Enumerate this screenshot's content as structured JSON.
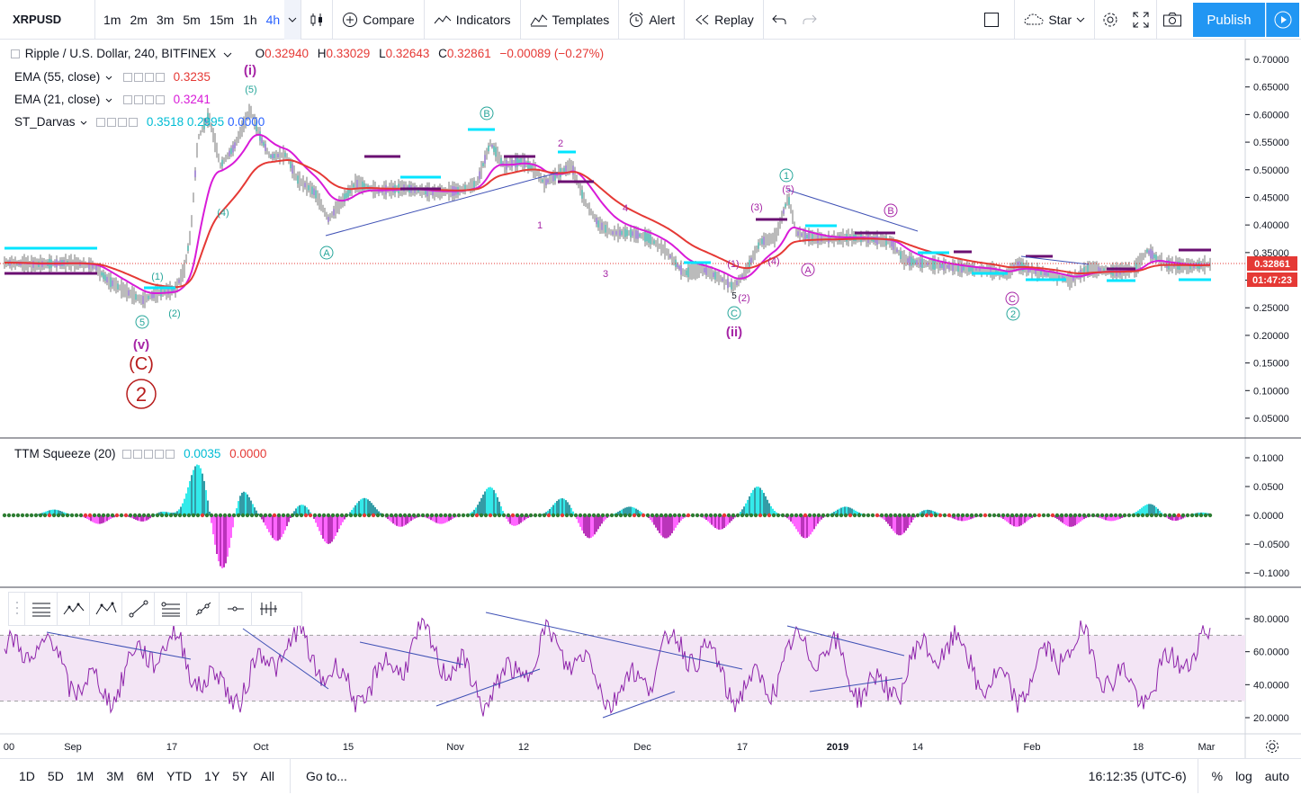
{
  "toolbar": {
    "symbol": "XRPUSD",
    "intervals": [
      "1m",
      "2m",
      "3m",
      "5m",
      "15m",
      "1h",
      "4h"
    ],
    "active_interval": "4h",
    "compare": "Compare",
    "indicators": "Indicators",
    "templates": "Templates",
    "alert": "Alert",
    "replay": "Replay",
    "star": "Star",
    "publish": "Publish"
  },
  "legend": {
    "title": "Ripple / U.S. Dollar, 240, BITFINEX",
    "o_label": "O",
    "o": "0.32940",
    "h_label": "H",
    "h": "0.33029",
    "l_label": "L",
    "l": "0.32643",
    "c_label": "C",
    "c": "0.32861",
    "change": "−0.00089 (−0.27%)",
    "ema55": "EMA (55, close)",
    "ema55_val": "0.3235",
    "ema21": "EMA (21, close)",
    "ema21_val": "0.3241",
    "darvas": "ST_Darvas",
    "darvas_v1": "0.3518",
    "darvas_v2": "0.2995",
    "darvas_v3": "0.0000"
  },
  "ttm": {
    "name": "TTM Squeeze (20)",
    "v1": "0.0035",
    "v2": "0.0000"
  },
  "price_axis": [
    "0.70000",
    "0.65000",
    "0.60000",
    "0.55000",
    "0.50000",
    "0.45000",
    "0.40000",
    "0.35000",
    "0.30000",
    "0.25000",
    "0.20000",
    "0.15000",
    "0.10000",
    "0.05000"
  ],
  "price_tag": "0.32861",
  "countdown": "01:47:23",
  "ttm_axis": [
    "0.1000",
    "0.0500",
    "0.0000",
    "−0.0500",
    "−0.1000"
  ],
  "rsi_axis": [
    "80.0000",
    "60.0000",
    "40.0000",
    "20.0000"
  ],
  "time_axis": [
    "00",
    "Sep",
    "17",
    "Oct",
    "15",
    "Nov",
    "12",
    "Dec",
    "17",
    "2019",
    "14",
    "Feb",
    "18",
    "Mar"
  ],
  "waves": {
    "i": "(i)",
    "five_top": "(5)",
    "four_a": "(4)",
    "one_a": "(1)",
    "two_a": "(2)",
    "five_circ": "5",
    "v": "(v)",
    "C_big": "(C)",
    "two_big": "2",
    "A1": "A",
    "B1": "B",
    "n1": "1",
    "n2": "2",
    "n3": "3",
    "n4": "4",
    "C1": "C",
    "ii": "(ii)",
    "three": "(3)",
    "five_b": "(5)",
    "four_b": "(4)",
    "one_b": "(1)",
    "two_b": "(2)",
    "five_s": "5",
    "one_circ": "1",
    "A2": "A",
    "B2": "B",
    "C2": "C",
    "two_circ": "2"
  },
  "bottom": {
    "ranges": [
      "1D",
      "5D",
      "1M",
      "3M",
      "6M",
      "YTD",
      "1Y",
      "5Y",
      "All"
    ],
    "goto": "Go to...",
    "clock": "16:12:35 (UTC-6)",
    "percent": "%",
    "log": "log",
    "auto": "auto"
  },
  "colors": {
    "accent": "#2196f3",
    "ema55": "#e53935",
    "ema21": "#d81bd8",
    "darvas": "#00e5ff",
    "darvas_low": "#6a0f72",
    "wave_teal": "#26a69a",
    "wave_purple": "#a626a6",
    "wave_red": "#b71c1c"
  }
}
